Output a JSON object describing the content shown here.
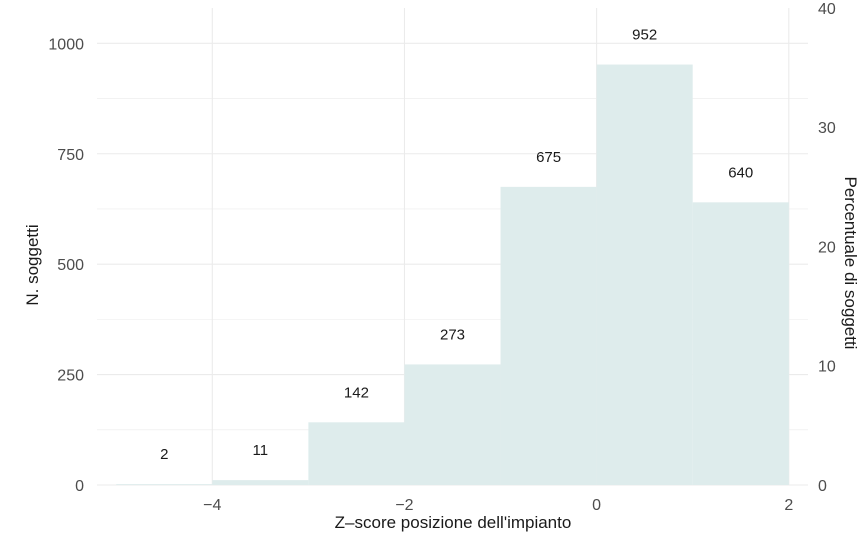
{
  "chart_data": {
    "type": "bar",
    "title": "",
    "xlabel": "Z–score posizione dell'impianto",
    "ylabel": "N. soggetti",
    "y2label": "Percentuale di soggetti",
    "bins": [
      {
        "x0": -5,
        "x1": -4,
        "value": 2
      },
      {
        "x0": -4,
        "x1": -3,
        "value": 11
      },
      {
        "x0": -3,
        "x1": -2,
        "value": 142
      },
      {
        "x0": -2,
        "x1": -1,
        "value": 273
      },
      {
        "x0": -1,
        "x1": 0,
        "value": 675
      },
      {
        "x0": 0,
        "x1": 1,
        "value": 952
      },
      {
        "x0": 1,
        "x1": 2,
        "value": 640
      }
    ],
    "bar_labels": [
      "2",
      "11",
      "142",
      "273",
      "675",
      "952",
      "640"
    ],
    "xlim": [
      -5.2,
      2.2
    ],
    "ylim": [
      0,
      1080
    ],
    "x_ticks": [
      -4,
      -2,
      0,
      2
    ],
    "x_tick_labels": [
      "−4",
      "−2",
      "0",
      "2"
    ],
    "y_ticks": [
      0,
      250,
      500,
      750,
      1000
    ],
    "y_tick_labels": [
      "0",
      "250",
      "500",
      "750",
      "1000"
    ],
    "y2_ticks": [
      0,
      10,
      20,
      30,
      40
    ],
    "y2_tick_labels": [
      "0",
      "10",
      "20",
      "30",
      "40"
    ],
    "y2_scale_factor": 0.03703,
    "grid": true,
    "bar_color": "#deecec",
    "grid_color": "#ebebeb",
    "legend": "none"
  }
}
